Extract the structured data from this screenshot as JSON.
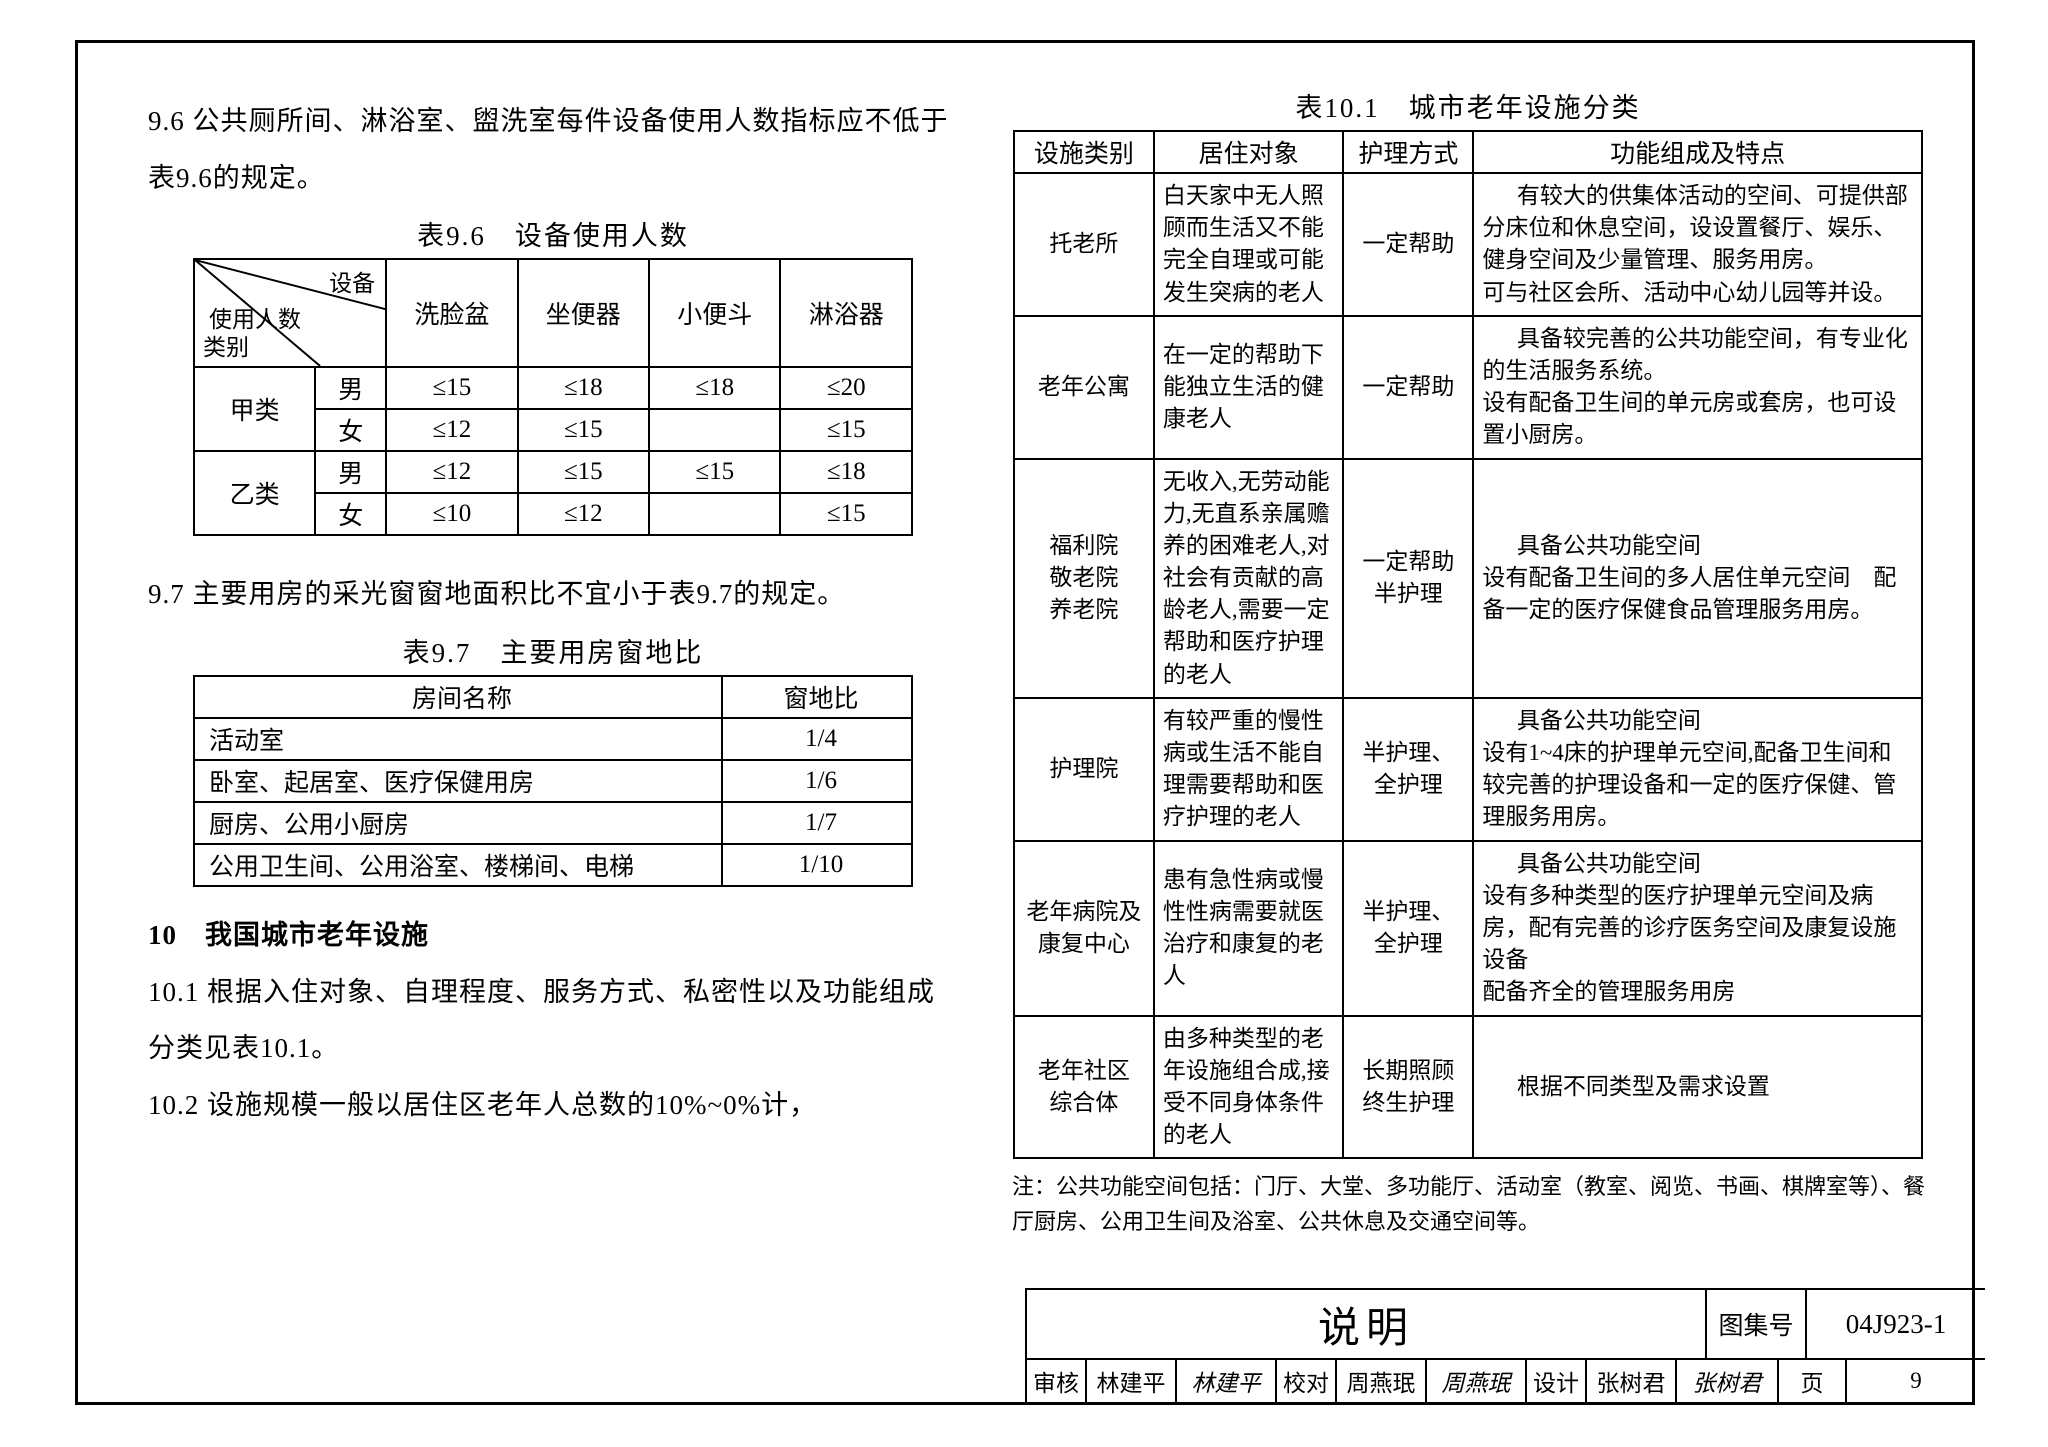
{
  "left": {
    "p96": "9.6 公共厕所间、淋浴室、盥洗室每件设备使用人数指标应不低于表9.6的规定。",
    "caption96": "表9.6　设备使用人数",
    "t96": {
      "diag": {
        "top": "设备",
        "mid": "使用人数",
        "bottom": "类别"
      },
      "headers": [
        "洗脸盆",
        "坐便器",
        "小便斗",
        "淋浴器"
      ],
      "rows": [
        {
          "cat": "甲类",
          "sex": "男",
          "v": [
            "≤15",
            "≤18",
            "≤18",
            "≤20"
          ]
        },
        {
          "cat": "",
          "sex": "女",
          "v": [
            "≤12",
            "≤15",
            "",
            "≤15"
          ]
        },
        {
          "cat": "乙类",
          "sex": "男",
          "v": [
            "≤12",
            "≤15",
            "≤15",
            "≤18"
          ]
        },
        {
          "cat": "",
          "sex": "女",
          "v": [
            "≤10",
            "≤12",
            "",
            "≤15"
          ]
        }
      ]
    },
    "p97": "9.7 主要用房的采光窗窗地面积比不宜小于表9.7的规定。",
    "caption97": "表9.7　主要用房窗地比",
    "t97": {
      "headers": [
        "房间名称",
        "窗地比"
      ],
      "rows": [
        [
          "活动室",
          "1/4"
        ],
        [
          "卧室、起居室、医疗保健用房",
          "1/6"
        ],
        [
          "厨房、公用小厨房",
          "1/7"
        ],
        [
          "公用卫生间、公用浴室、楼梯间、电梯",
          "1/10"
        ]
      ]
    },
    "h10": "10　我国城市老年设施",
    "p101": "10.1 根据入住对象、自理程度、服务方式、私密性以及功能组成分类见表10.1。",
    "p102": "10.2 设施规模一般以居住区老年人总数的10%~0%计，"
  },
  "right": {
    "caption101": "表10.1　城市老年设施分类",
    "t101": {
      "headers": [
        "设施类别",
        "居住对象",
        "护理方式",
        "功能组成及特点"
      ],
      "rows": [
        {
          "c1": "托老所",
          "c2": "白天家中无人照顾而生活又不能完全自理或可能发生突病的老人",
          "c3": "一定帮助",
          "c4": "有较大的供集体活动的空间、可提供部分床位和休息空间，设设置餐厅、娱乐、健身空间及少量管理、服务用房。\n可与社区会所、活动中心幼儿园等并设。"
        },
        {
          "c1": "老年公寓",
          "c2": "在一定的帮助下能独立生活的健康老人",
          "c3": "一定帮助",
          "c4": "具备较完善的公共功能空间，有专业化的生活服务系统。\n设有配备卫生间的单元房或套房，也可设置小厨房。"
        },
        {
          "c1": "福利院\n敬老院\n养老院",
          "c2": "无收入,无劳动能力,无直系亲属赡养的困难老人,对社会有贡献的高龄老人,需要一定帮助和医疗护理的老人",
          "c3": "一定帮助\n半护理",
          "c4": "具备公共功能空间\n设有配备卫生间的多人居住单元空间　配备一定的医疗保健食品管理服务用房。"
        },
        {
          "c1": "护理院",
          "c2": "有较严重的慢性病或生活不能自理需要帮助和医疗护理的老人",
          "c3": "半护理、\n全护理",
          "c4": "具备公共功能空间\n设有1~4床的护理单元空间,配备卫生间和较完善的护理设备和一定的医疗保健、管理服务用房。"
        },
        {
          "c1": "老年病院及\n康复中心",
          "c2": "患有急性病或慢性性病需要就医治疗和康复的老人",
          "c3": "半护理、\n全护理",
          "c4": "具备公共功能空间\n设有多种类型的医疗护理单元空间及病房，配有完善的诊疗医务空间及康复设施设备\n配备齐全的管理服务用房"
        },
        {
          "c1": "老年社区\n综合体",
          "c2": "由多种类型的老年设施组合成,接受不同身体条件的老人",
          "c3": "长期照顾\n终生护理",
          "c4": "根据不同类型及需求设置"
        }
      ]
    },
    "footnote": "注：公共功能空间包括：门厅、大堂、多功能厅、活动室（教室、阅览、书画、棋牌室等）、餐厅厨房、公用卫生间及浴室、公共休息及交通空间等。"
  },
  "titleblock": {
    "title": "说明",
    "code_label": "图集号",
    "code": "04J923-1",
    "row2": {
      "l1": "审核",
      "v1": "林建平",
      "s1": "林建平",
      "l2": "校对",
      "v2": "周燕珉",
      "s2": "周燕珉",
      "l3": "设计",
      "v3": "张树君",
      "s3": "张树君",
      "page_label": "页",
      "page": "9"
    }
  }
}
